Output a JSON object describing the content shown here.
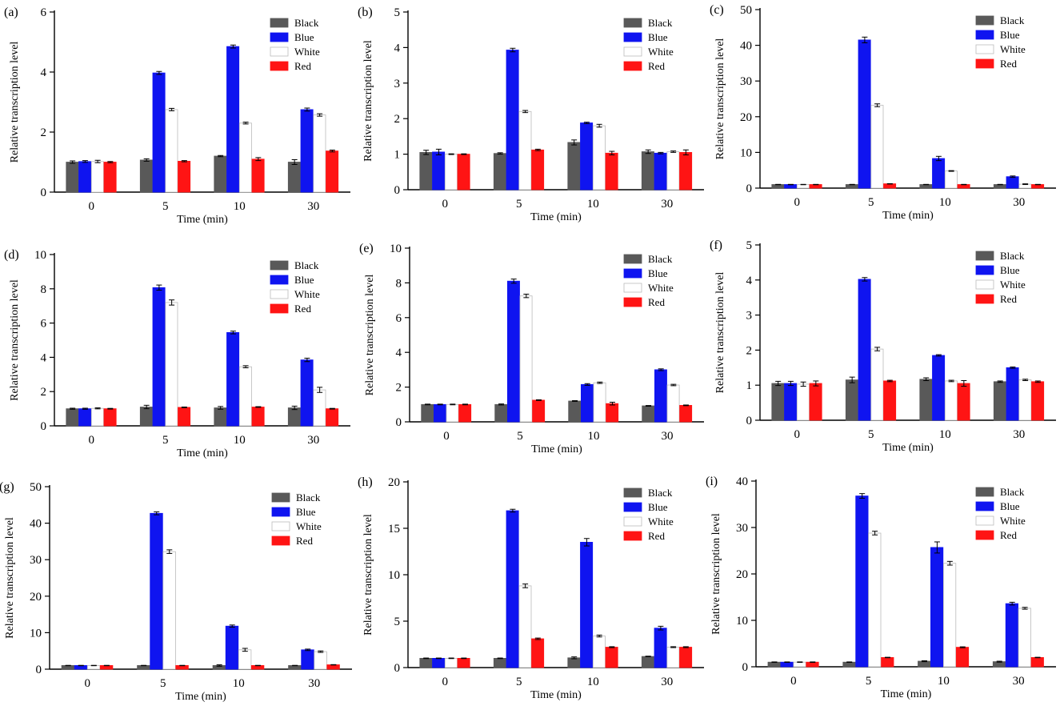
{
  "figure": {
    "colors": {
      "Black": "#595959",
      "Blue": "#0f14f0",
      "White": "#ffffff",
      "Red": "#ff1414"
    }
  },
  "chart_data": [
    {
      "panel": "(a)",
      "type": "bar",
      "categories": [
        "0",
        "5",
        "10",
        "30"
      ],
      "xlabel": "Time (min)",
      "ylabel": "Relative transcription level",
      "ylim": [
        0,
        6
      ],
      "yticks": [
        0,
        2,
        4,
        6
      ],
      "series": [
        {
          "name": "Black",
          "values": [
            1.0,
            1.07,
            1.2,
            1.0
          ],
          "errors": [
            0.04,
            0.04,
            0.02,
            0.08
          ]
        },
        {
          "name": "Blue",
          "values": [
            1.02,
            3.97,
            4.85,
            2.75
          ],
          "errors": [
            0.03,
            0.05,
            0.05,
            0.05
          ]
        },
        {
          "name": "White",
          "values": [
            1.02,
            2.75,
            2.3,
            2.57
          ],
          "errors": [
            0.04,
            0.04,
            0.03,
            0.04
          ]
        },
        {
          "name": "Red",
          "values": [
            1.0,
            1.03,
            1.1,
            1.37
          ],
          "errors": [
            0.02,
            0.02,
            0.05,
            0.03
          ]
        }
      ]
    },
    {
      "panel": "(b)",
      "type": "bar",
      "categories": [
        "0",
        "5",
        "10",
        "30"
      ],
      "xlabel": "Time (min)",
      "ylabel": "Relative transcription level",
      "ylim": [
        0,
        5
      ],
      "yticks": [
        0,
        1,
        2,
        3,
        4,
        5
      ],
      "series": [
        {
          "name": "Black",
          "values": [
            1.05,
            1.02,
            1.33,
            1.07
          ],
          "errors": [
            0.06,
            0.02,
            0.07,
            0.05
          ]
        },
        {
          "name": "Blue",
          "values": [
            1.06,
            3.93,
            1.88,
            1.03
          ],
          "errors": [
            0.08,
            0.05,
            0.02,
            0.02
          ]
        },
        {
          "name": "White",
          "values": [
            1.0,
            2.2,
            1.8,
            1.07
          ],
          "errors": [
            0.01,
            0.03,
            0.04,
            0.02
          ]
        },
        {
          "name": "Red",
          "values": [
            1.0,
            1.12,
            1.03,
            1.05
          ],
          "errors": [
            0.01,
            0.02,
            0.05,
            0.07
          ]
        }
      ]
    },
    {
      "panel": "(c)",
      "type": "bar",
      "categories": [
        "0",
        "5",
        "10",
        "30"
      ],
      "xlabel": "Time (min)",
      "ylabel": "Relative transcription level",
      "ylim": [
        0,
        50
      ],
      "yticks": [
        0,
        10,
        20,
        30,
        40,
        50
      ],
      "series": [
        {
          "name": "Black",
          "values": [
            1.0,
            1.0,
            1.0,
            1.0
          ],
          "errors": [
            0.05,
            0.05,
            0.05,
            0.05
          ]
        },
        {
          "name": "Blue",
          "values": [
            1.0,
            41.5,
            8.3,
            3.2
          ],
          "errors": [
            0.05,
            0.8,
            0.6,
            0.2
          ]
        },
        {
          "name": "White",
          "values": [
            1.0,
            23.2,
            4.8,
            1.1
          ],
          "errors": [
            0.05,
            0.4,
            0.1,
            0.1
          ]
        },
        {
          "name": "Red",
          "values": [
            1.0,
            1.2,
            1.0,
            1.0
          ],
          "errors": [
            0.05,
            0.05,
            0.05,
            0.05
          ]
        }
      ]
    },
    {
      "panel": "(d)",
      "type": "bar",
      "categories": [
        "0",
        "5",
        "10",
        "30"
      ],
      "xlabel": "Time (min)",
      "ylabel": "Relative transcription level",
      "ylim": [
        0,
        10
      ],
      "yticks": [
        0,
        2,
        4,
        6,
        8,
        10
      ],
      "series": [
        {
          "name": "Black",
          "values": [
            1.0,
            1.1,
            1.05,
            1.05
          ],
          "errors": [
            0.03,
            0.1,
            0.08,
            0.1
          ]
        },
        {
          "name": "Blue",
          "values": [
            1.0,
            8.07,
            5.45,
            3.85
          ],
          "errors": [
            0.03,
            0.15,
            0.08,
            0.1
          ]
        },
        {
          "name": "White",
          "values": [
            1.02,
            7.2,
            3.45,
            2.1
          ],
          "errors": [
            0.03,
            0.15,
            0.06,
            0.15
          ]
        },
        {
          "name": "Red",
          "values": [
            1.0,
            1.08,
            1.1,
            1.0
          ],
          "errors": [
            0.02,
            0.02,
            0.02,
            0.02
          ]
        }
      ]
    },
    {
      "panel": "(e)",
      "type": "bar",
      "categories": [
        "0",
        "5",
        "10",
        "30"
      ],
      "xlabel": "Time (min)",
      "ylabel": "Relative transcription level",
      "ylim": [
        0,
        10
      ],
      "yticks": [
        0,
        2,
        4,
        6,
        8,
        10
      ],
      "series": [
        {
          "name": "Black",
          "values": [
            1.0,
            1.0,
            1.2,
            0.92
          ],
          "errors": [
            0.02,
            0.03,
            0.02,
            0.02
          ]
        },
        {
          "name": "Blue",
          "values": [
            1.0,
            8.1,
            2.15,
            3.0
          ],
          "errors": [
            0.02,
            0.12,
            0.05,
            0.05
          ]
        },
        {
          "name": "White",
          "values": [
            1.0,
            7.25,
            2.25,
            2.12
          ],
          "errors": [
            0.02,
            0.1,
            0.04,
            0.04
          ]
        },
        {
          "name": "Red",
          "values": [
            1.0,
            1.25,
            1.05,
            0.95
          ],
          "errors": [
            0.02,
            0.02,
            0.08,
            0.02
          ]
        }
      ]
    },
    {
      "panel": "(f)",
      "type": "bar",
      "categories": [
        "0",
        "5",
        "10",
        "30"
      ],
      "xlabel": "Time (min)",
      "ylabel": "Relative transcription level",
      "ylim": [
        0,
        5
      ],
      "yticks": [
        0,
        1,
        2,
        3,
        4,
        5
      ],
      "series": [
        {
          "name": "Black",
          "values": [
            1.05,
            1.15,
            1.17,
            1.1
          ],
          "errors": [
            0.06,
            0.08,
            0.04,
            0.02
          ]
        },
        {
          "name": "Blue",
          "values": [
            1.05,
            4.02,
            1.85,
            1.5
          ],
          "errors": [
            0.06,
            0.05,
            0.02,
            0.02
          ]
        },
        {
          "name": "White",
          "values": [
            1.03,
            2.03,
            1.12,
            1.15
          ],
          "errors": [
            0.06,
            0.05,
            0.02,
            0.02
          ]
        },
        {
          "name": "Red",
          "values": [
            1.05,
            1.12,
            1.05,
            1.1
          ],
          "errors": [
            0.07,
            0.02,
            0.08,
            0.02
          ]
        }
      ]
    },
    {
      "panel": "(g)",
      "type": "bar",
      "categories": [
        "0",
        "5",
        "10",
        "30"
      ],
      "xlabel": "Time (min)",
      "ylabel": "Relative transcription level",
      "ylim": [
        0,
        50
      ],
      "yticks": [
        0,
        10,
        20,
        30,
        40,
        50
      ],
      "series": [
        {
          "name": "Black",
          "values": [
            1.0,
            1.0,
            1.0,
            1.0
          ],
          "errors": [
            0.05,
            0.05,
            0.2,
            0.05
          ]
        },
        {
          "name": "Blue",
          "values": [
            1.0,
            42.7,
            11.8,
            5.3
          ],
          "errors": [
            0.05,
            0.4,
            0.3,
            0.2
          ]
        },
        {
          "name": "White",
          "values": [
            1.0,
            32.2,
            5.3,
            4.8
          ],
          "errors": [
            0.05,
            0.5,
            0.4,
            0.2
          ]
        },
        {
          "name": "Red",
          "values": [
            1.0,
            1.0,
            1.0,
            1.2
          ],
          "errors": [
            0.05,
            0.05,
            0.05,
            0.05
          ]
        }
      ]
    },
    {
      "panel": "(h)",
      "type": "bar",
      "categories": [
        "0",
        "5",
        "10",
        "30"
      ],
      "xlabel": "Time (min)",
      "ylabel": "Relative transcription level",
      "ylim": [
        0,
        20
      ],
      "yticks": [
        0,
        5,
        10,
        15,
        20
      ],
      "series": [
        {
          "name": "Black",
          "values": [
            1.0,
            1.0,
            1.05,
            1.2
          ],
          "errors": [
            0.03,
            0.03,
            0.1,
            0.03
          ]
        },
        {
          "name": "Blue",
          "values": [
            1.0,
            16.9,
            13.5,
            4.25
          ],
          "errors": [
            0.03,
            0.15,
            0.4,
            0.2
          ]
        },
        {
          "name": "White",
          "values": [
            1.0,
            8.8,
            3.4,
            2.2
          ],
          "errors": [
            0.03,
            0.2,
            0.1,
            0.05
          ]
        },
        {
          "name": "Red",
          "values": [
            1.0,
            3.1,
            2.2,
            2.2
          ],
          "errors": [
            0.03,
            0.08,
            0.05,
            0.05
          ]
        }
      ]
    },
    {
      "panel": "(i)",
      "type": "bar",
      "categories": [
        "0",
        "5",
        "10",
        "30"
      ],
      "xlabel": "Time (min)",
      "ylabel": "Relative transcription level",
      "ylim": [
        0,
        40
      ],
      "yticks": [
        0,
        10,
        20,
        30,
        40
      ],
      "series": [
        {
          "name": "Black",
          "values": [
            1.0,
            1.0,
            1.2,
            1.1
          ],
          "errors": [
            0.05,
            0.05,
            0.1,
            0.1
          ]
        },
        {
          "name": "Blue",
          "values": [
            1.0,
            36.8,
            25.7,
            13.6
          ],
          "errors": [
            0.05,
            0.5,
            1.2,
            0.3
          ]
        },
        {
          "name": "White",
          "values": [
            1.0,
            28.8,
            22.3,
            12.6
          ],
          "errors": [
            0.05,
            0.4,
            0.4,
            0.2
          ]
        },
        {
          "name": "Red",
          "values": [
            1.0,
            2.0,
            4.2,
            2.0
          ],
          "errors": [
            0.05,
            0.05,
            0.1,
            0.05
          ]
        }
      ]
    }
  ]
}
